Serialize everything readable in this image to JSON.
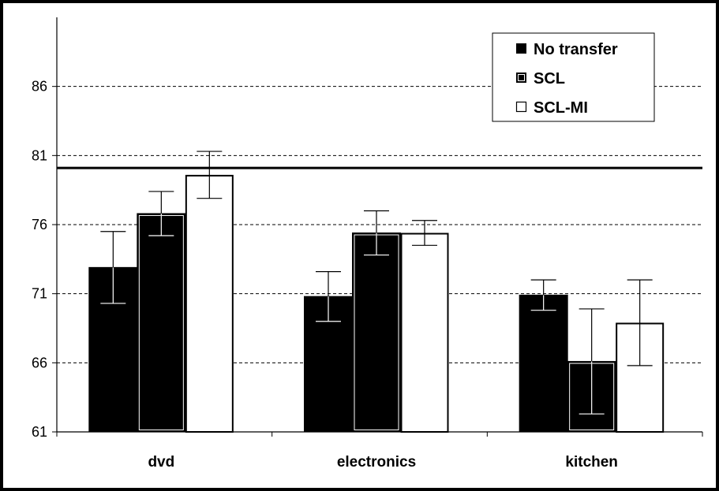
{
  "chart_data": {
    "type": "bar",
    "title": "",
    "xlabel": "",
    "ylabel": "",
    "categories": [
      "dvd",
      "electronics",
      "kitchen"
    ],
    "ylim": [
      61,
      91
    ],
    "yticks": [
      61,
      66,
      71,
      76,
      81,
      86
    ],
    "grid": true,
    "legend_position": "top-right",
    "reference_line": 80.1,
    "series": [
      {
        "name": "No transfer",
        "values": [
          72.9,
          70.8,
          70.9
        ],
        "error": [
          2.6,
          1.8,
          1.1
        ],
        "color": "#000000",
        "style": "solid"
      },
      {
        "name": "SCL",
        "values": [
          76.8,
          75.4,
          66.1
        ],
        "error": [
          1.6,
          1.6,
          3.8
        ],
        "color": "#000000",
        "style": "outlined"
      },
      {
        "name": "SCL-MI",
        "values": [
          79.6,
          75.4,
          68.9
        ],
        "error": [
          1.7,
          0.9,
          3.1
        ],
        "color": "#ffffff",
        "style": "white"
      }
    ]
  }
}
